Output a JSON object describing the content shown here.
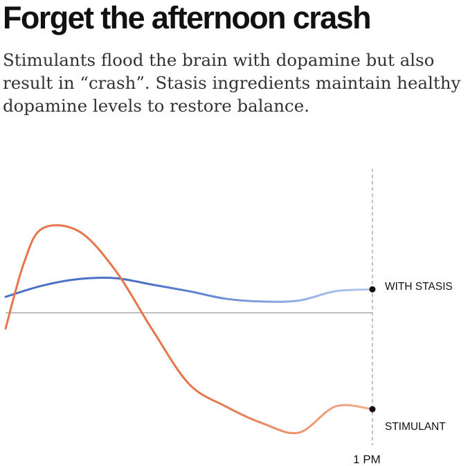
{
  "header": {
    "title": "Forget the afternoon crash",
    "subtitle": "Stimulants flood the brain with dopamine but also result in “crash”. Stasis ingredients maintain healthy dopamine levels to restore balance."
  },
  "chart_data": {
    "type": "line",
    "title": "",
    "xlabel": "",
    "ylabel": "",
    "x_tick_labels": [
      "1 PM"
    ],
    "grid": false,
    "baseline": 0,
    "ylim": [
      -100,
      100
    ],
    "colors": {
      "stimulant": "#e8744a",
      "stimulant_fade": "#f0ae8e",
      "stasis": "#4a70c8",
      "stasis_fade": "#b4cbf0",
      "marker": "#111111",
      "axis": "#999999"
    },
    "series": [
      {
        "name": "WITH STASIS",
        "x": [
          0,
          0.1,
          0.2,
          0.3,
          0.4,
          0.5,
          0.6,
          0.7,
          0.8,
          0.9,
          1.0
        ],
        "values": [
          17,
          29,
          36,
          37,
          30,
          23,
          15,
          12,
          13,
          23,
          25
        ]
      },
      {
        "name": "STIMULANT",
        "x": [
          0,
          0.05,
          0.1,
          0.2,
          0.3,
          0.4,
          0.5,
          0.6,
          0.7,
          0.8,
          0.9,
          1.0
        ],
        "values": [
          -17,
          53,
          90,
          87,
          45,
          -18,
          -76,
          -100,
          -118,
          -128,
          -100,
          -103
        ]
      }
    ]
  }
}
